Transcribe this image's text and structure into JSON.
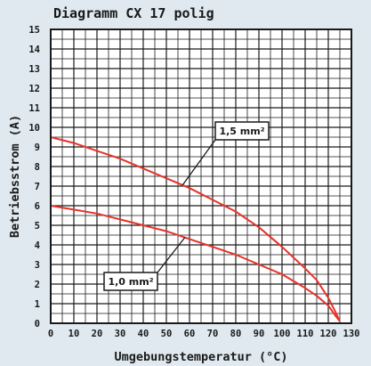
{
  "chart_data": {
    "type": "line",
    "title": "Diagramm CX 17 polig",
    "xlabel": "Umgebungstemperatur (°C)",
    "ylabel": "Betriebsstrom (A)",
    "xlim": [
      0,
      130
    ],
    "ylim": [
      0,
      15
    ],
    "x_ticks": [
      0,
      10,
      20,
      30,
      40,
      50,
      60,
      70,
      80,
      90,
      100,
      110,
      120,
      130
    ],
    "y_ticks": [
      0,
      1,
      2,
      3,
      4,
      5,
      6,
      7,
      8,
      9,
      10,
      11,
      12,
      13,
      14,
      15
    ],
    "grid": true,
    "line_color": "#e8322a",
    "series": [
      {
        "name": "1,5 mm²",
        "x": [
          0,
          10,
          20,
          30,
          40,
          50,
          60,
          70,
          80,
          90,
          100,
          110,
          115,
          120,
          123,
          125
        ],
        "y": [
          9.5,
          9.2,
          8.8,
          8.4,
          7.9,
          7.4,
          6.9,
          6.3,
          5.7,
          4.9,
          3.9,
          2.8,
          2.2,
          1.3,
          0.6,
          0.1
        ]
      },
      {
        "name": "1,0 mm²",
        "x": [
          0,
          10,
          20,
          30,
          40,
          50,
          60,
          70,
          80,
          90,
          100,
          110,
          115,
          120,
          123,
          125
        ],
        "y": [
          6.0,
          5.8,
          5.6,
          5.3,
          5.0,
          4.7,
          4.3,
          3.9,
          3.5,
          3.0,
          2.5,
          1.8,
          1.4,
          0.9,
          0.4,
          0.1
        ]
      }
    ],
    "annotations": [
      {
        "label": "1,5 mm²",
        "series": 0,
        "at_x": 57
      },
      {
        "label": "1,0 mm²",
        "series": 1,
        "at_x": 58
      }
    ]
  }
}
